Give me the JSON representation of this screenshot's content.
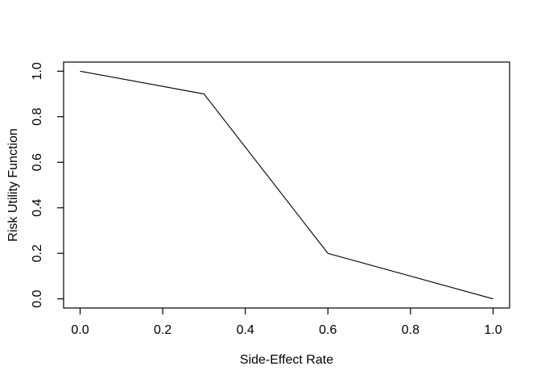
{
  "chart_data": {
    "type": "line",
    "title": "",
    "xlabel": "Side-Effect Rate",
    "ylabel": "Risk Utility Function",
    "x": [
      0.0,
      0.3,
      0.6,
      1.0
    ],
    "y": [
      1.0,
      0.9,
      0.2,
      0.0
    ],
    "xlim": [
      0.0,
      1.0
    ],
    "ylim": [
      0.0,
      1.0
    ],
    "x_ticks": [
      0.0,
      0.2,
      0.4,
      0.6,
      0.8,
      1.0
    ],
    "y_ticks": [
      0.0,
      0.2,
      0.4,
      0.6,
      0.8,
      1.0
    ],
    "x_tick_labels": [
      "0.0",
      "0.2",
      "0.4",
      "0.6",
      "0.8",
      "1.0"
    ],
    "y_tick_labels": [
      "0.0",
      "0.2",
      "0.4",
      "0.6",
      "0.8",
      "1.0"
    ],
    "line_color": "#000000",
    "axis_color": "#000000",
    "background": "#ffffff",
    "grid": false,
    "legend": null,
    "marker": "none"
  }
}
